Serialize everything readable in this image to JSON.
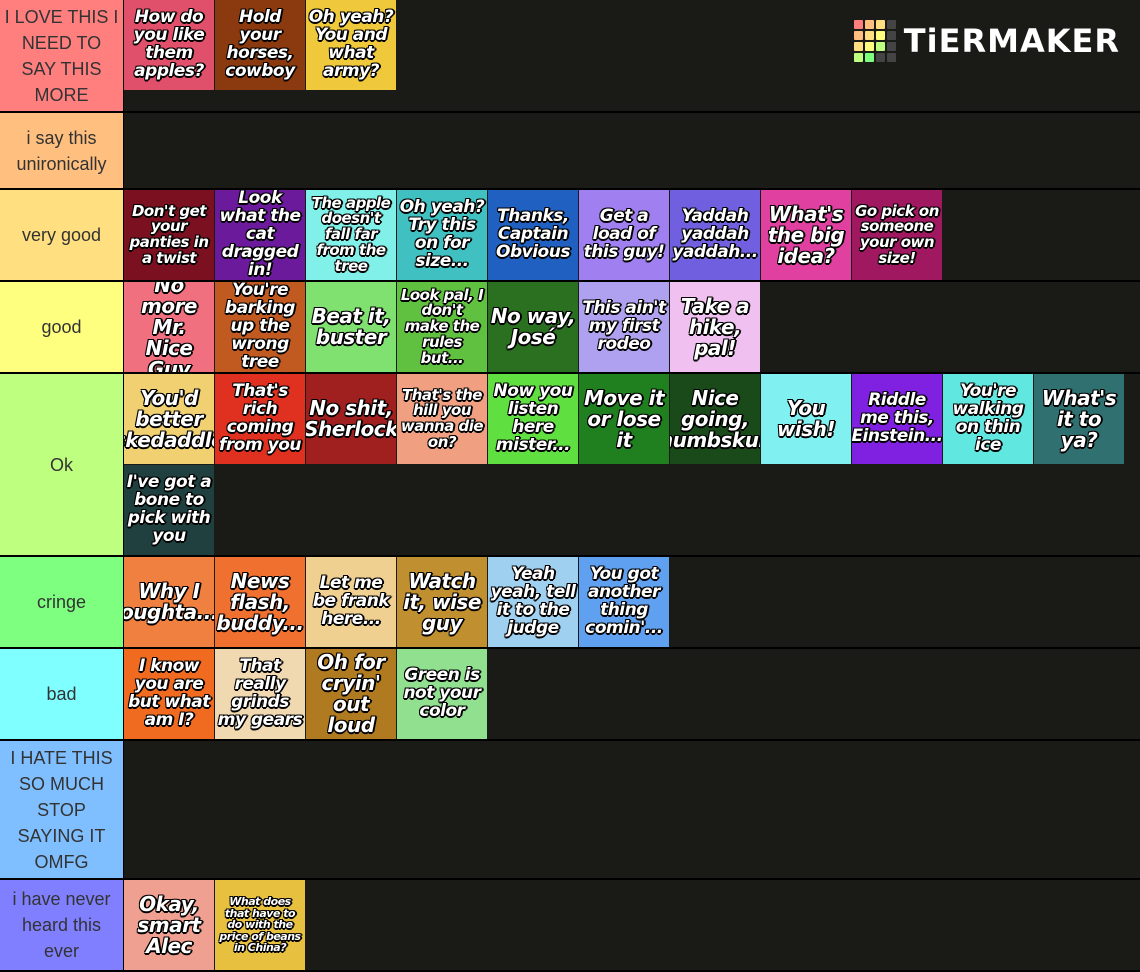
{
  "logo": "TiERMAKER",
  "tiers": [
    {
      "label": "I LOVE THIS I NEED TO SAY THIS MORE",
      "color": "#ff7f7f",
      "items": [
        {
          "text": "How do you like them apples?",
          "color": "#e0506a"
        },
        {
          "text": "Hold your horses, cowboy",
          "color": "#8b3a0f"
        },
        {
          "text": "Oh yeah? You and what army?",
          "color": "#f0c83c"
        }
      ]
    },
    {
      "label": "i say this unironically",
      "color": "#ffbf7f",
      "items": []
    },
    {
      "label": "very good",
      "color": "#ffdf7f",
      "items": [
        {
          "text": "Don't get your panties in a twist",
          "color": "#7a1020"
        },
        {
          "text": "Look what the cat dragged in!",
          "color": "#6a1a9a"
        },
        {
          "text": "The apple doesn't fall far from the tree",
          "color": "#80f0e8"
        },
        {
          "text": "Oh yeah? Try this on for size...",
          "color": "#40c0c0"
        },
        {
          "text": "Thanks, Captain Obvious",
          "color": "#2060c0"
        },
        {
          "text": "Get a load of this guy!",
          "color": "#a080f0"
        },
        {
          "text": "Yaddah yaddah yaddah...",
          "color": "#7060e0"
        },
        {
          "text": "What's the big idea?",
          "color": "#e040a0"
        },
        {
          "text": "Go pick on someone your own size!",
          "color": "#a01860"
        }
      ]
    },
    {
      "label": "good",
      "color": "#ffff7f",
      "items": [
        {
          "text": "No more Mr. Nice Guy",
          "color": "#f07080"
        },
        {
          "text": "You're barking up the wrong tree",
          "color": "#c05a20"
        },
        {
          "text": "Beat it, buster",
          "color": "#80e070"
        },
        {
          "text": "Look pal, I don't make the rules but...",
          "color": "#60c040"
        },
        {
          "text": "No way, José",
          "color": "#2a7020"
        },
        {
          "text": "This ain't my first rodeo",
          "color": "#b0a0f0"
        },
        {
          "text": "Take a hike, pal!",
          "color": "#f0c0f0"
        }
      ]
    },
    {
      "label": "Ok",
      "color": "#bfff7f",
      "items": [
        {
          "text": "You'd better skedaddle",
          "color": "#f0d070"
        },
        {
          "text": "That's rich coming from you",
          "color": "#e03020"
        },
        {
          "text": "No shit, Sherlock",
          "color": "#a02020"
        },
        {
          "text": "That's the hill you wanna die on?",
          "color": "#f0a080"
        },
        {
          "text": "Now you listen here mister...",
          "color": "#60e040"
        },
        {
          "text": "Move it or lose it",
          "color": "#208020"
        },
        {
          "text": "Nice going, numbskull",
          "color": "#1a4a1a"
        },
        {
          "text": "You wish!",
          "color": "#80f0f0"
        },
        {
          "text": "Riddle me this, Einstein...",
          "color": "#8020e0"
        },
        {
          "text": "You're walking on thin ice",
          "color": "#60e8e0"
        },
        {
          "text": "What's it to ya?",
          "color": "#307070"
        },
        {
          "text": "I've got a bone to pick with you",
          "color": "#204040"
        }
      ]
    },
    {
      "label": "cringe",
      "color": "#7fff7f",
      "items": [
        {
          "text": "Why I oughta...",
          "color": "#f08040"
        },
        {
          "text": "News flash, buddy...",
          "color": "#f07030"
        },
        {
          "text": "Let me be frank here...",
          "color": "#f0d090"
        },
        {
          "text": "Watch it, wise guy",
          "color": "#c09030"
        },
        {
          "text": "Yeah yeah, tell it to the judge",
          "color": "#a0d0f0"
        },
        {
          "text": "You got another thing comin'...",
          "color": "#60a0f0"
        }
      ]
    },
    {
      "label": "bad",
      "color": "#7fffff",
      "items": [
        {
          "text": "I know you are but what am I?",
          "color": "#f06a20"
        },
        {
          "text": "That really grinds my gears",
          "color": "#f0d8b0"
        },
        {
          "text": "Oh for cryin' out loud",
          "color": "#b07a20"
        },
        {
          "text": "Green is not your color",
          "color": "#90e090"
        }
      ]
    },
    {
      "label": "I HATE THIS SO MUCH STOP SAYING IT OMFG",
      "color": "#7fbfff",
      "items": []
    },
    {
      "label": "i have never heard this ever",
      "color": "#7f7fff",
      "items": [
        {
          "text": "Okay, smart Alec",
          "color": "#f0a090"
        },
        {
          "text": "What does that have to do with the price of beans in China?",
          "color": "#e8c040"
        }
      ]
    }
  ]
}
